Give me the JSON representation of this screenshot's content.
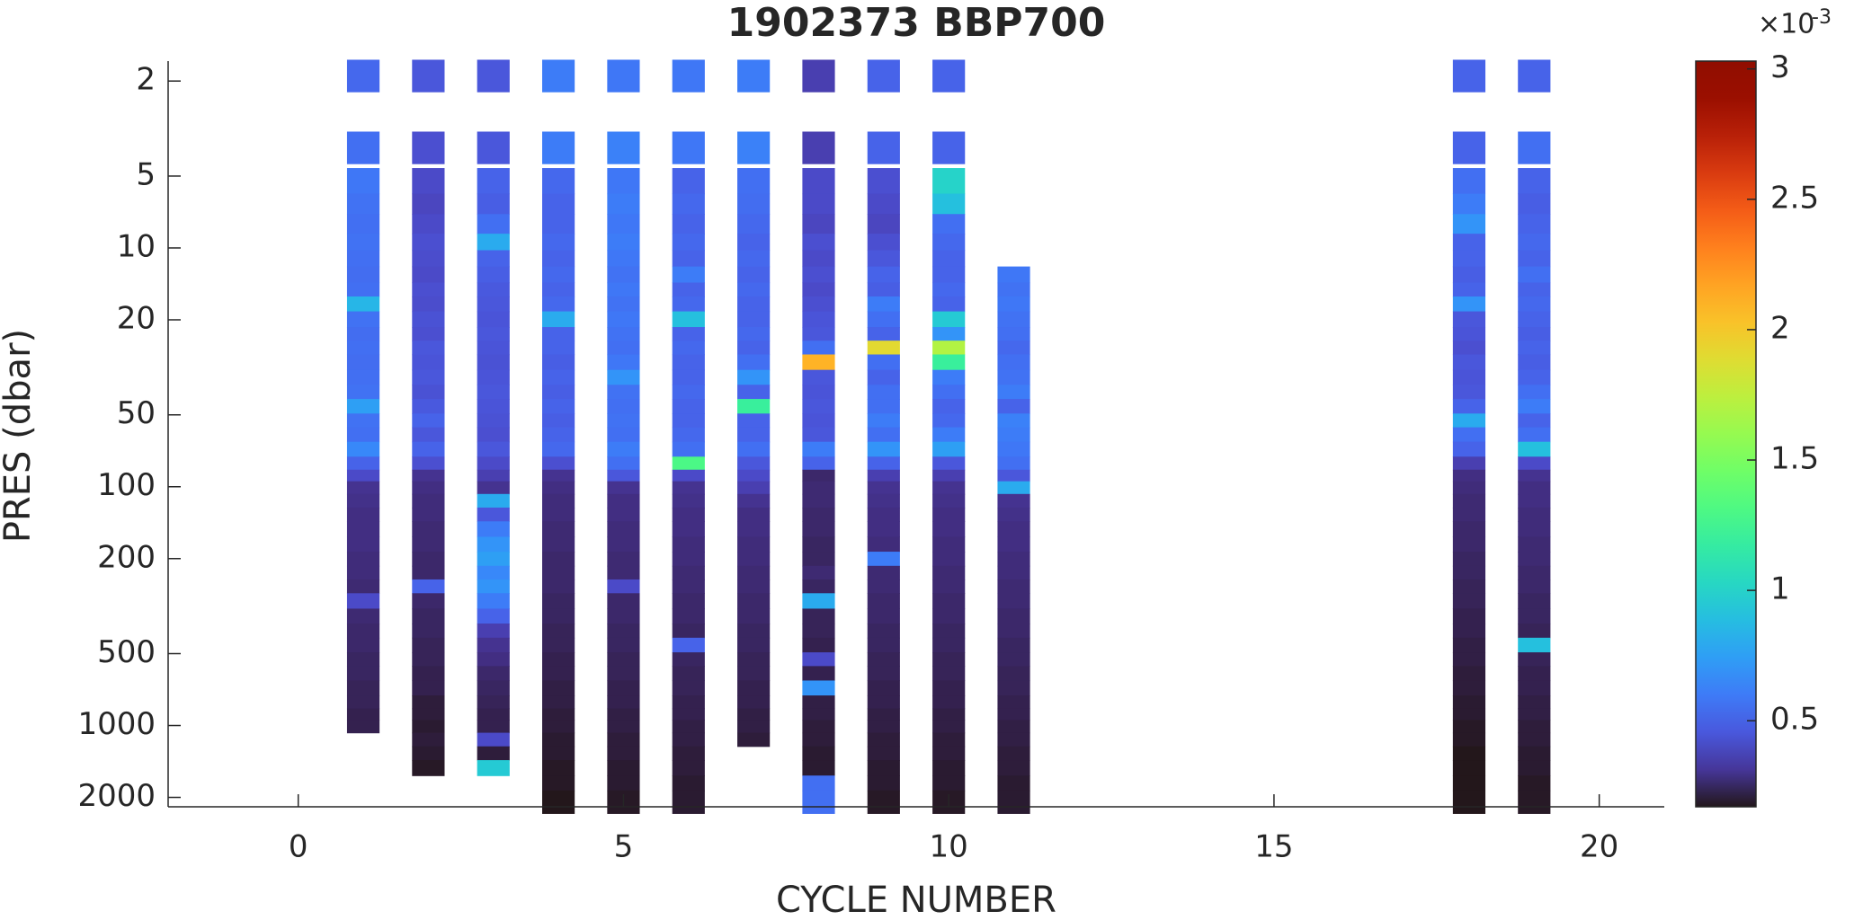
{
  "chart_data": {
    "type": "heatmap",
    "title": "1902373 BBP700",
    "xlabel": "CYCLE NUMBER",
    "ylabel": "PRES (dbar)",
    "x": [
      1,
      2,
      3,
      4,
      5,
      6,
      7,
      8,
      9,
      10,
      11,
      18,
      19
    ],
    "y": [
      1.9,
      3.8,
      5.4,
      6.5,
      8,
      9.5,
      11,
      13,
      15,
      17,
      20,
      23,
      26,
      30,
      35,
      40,
      46,
      53,
      60,
      70,
      80,
      90,
      100,
      115,
      130,
      150,
      175,
      200,
      230,
      260,
      300,
      350,
      400,
      460,
      530,
      600,
      700,
      800,
      900,
      1000,
      1150,
      1300,
      1500,
      1750,
      2000
    ],
    "values": [
      [
        0.52,
        0.55,
        0.58,
        0.56,
        0.55,
        0.56,
        0.55,
        0.54,
        0.55,
        0.85,
        0.56,
        0.54,
        0.55,
        0.54,
        0.55,
        0.56,
        0.75,
        0.56,
        0.55,
        0.65,
        0.5,
        0.4,
        0.3,
        0.29,
        0.28,
        0.28,
        0.28,
        0.27,
        0.27,
        0.26,
        0.4,
        0.26,
        0.25,
        0.25,
        0.24,
        0.24,
        0.23,
        0.23,
        0.22,
        0.22,
        null,
        null,
        null,
        null,
        null
      ],
      [
        0.45,
        0.42,
        0.4,
        0.38,
        0.4,
        0.42,
        0.41,
        0.4,
        0.42,
        0.41,
        0.43,
        0.42,
        0.45,
        0.44,
        0.45,
        0.43,
        0.46,
        0.5,
        0.45,
        0.5,
        0.42,
        0.3,
        0.28,
        0.27,
        0.27,
        0.26,
        0.26,
        0.25,
        0.25,
        0.5,
        0.25,
        0.24,
        0.24,
        0.23,
        0.23,
        0.22,
        0.22,
        0.2,
        0.2,
        0.19,
        0.2,
        0.19,
        0.18,
        null,
        null
      ],
      [
        0.45,
        0.45,
        0.5,
        0.48,
        0.55,
        0.8,
        0.5,
        0.48,
        0.46,
        0.45,
        0.44,
        0.45,
        0.44,
        0.43,
        0.44,
        0.45,
        0.44,
        0.43,
        0.42,
        0.45,
        0.4,
        0.35,
        0.3,
        0.8,
        0.45,
        0.6,
        0.7,
        0.75,
        0.65,
        0.7,
        0.6,
        0.5,
        0.35,
        0.3,
        0.28,
        0.25,
        0.24,
        0.23,
        0.22,
        0.22,
        0.4,
        0.2,
        0.95,
        null,
        null
      ],
      [
        0.6,
        0.6,
        0.52,
        0.5,
        0.5,
        0.52,
        0.5,
        0.52,
        0.5,
        0.52,
        0.8,
        0.5,
        0.5,
        0.48,
        0.5,
        0.48,
        0.5,
        0.48,
        0.5,
        0.52,
        0.42,
        0.3,
        0.28,
        0.27,
        0.27,
        0.26,
        0.26,
        0.25,
        0.25,
        0.25,
        0.24,
        0.24,
        0.23,
        0.23,
        0.22,
        0.22,
        0.21,
        0.21,
        0.2,
        0.2,
        0.19,
        0.19,
        0.18,
        0.18,
        0.17
      ],
      [
        0.58,
        0.62,
        0.58,
        0.6,
        0.58,
        0.6,
        0.58,
        0.56,
        0.58,
        0.56,
        0.58,
        0.56,
        0.55,
        0.58,
        0.7,
        0.56,
        0.55,
        0.56,
        0.55,
        0.6,
        0.55,
        0.45,
        0.3,
        0.28,
        0.28,
        0.27,
        0.27,
        0.26,
        0.26,
        0.4,
        0.25,
        0.25,
        0.24,
        0.24,
        0.23,
        0.23,
        0.22,
        0.22,
        0.21,
        0.21,
        0.2,
        0.2,
        0.19,
        0.19,
        0.18
      ],
      [
        0.58,
        0.58,
        0.5,
        0.52,
        0.5,
        0.52,
        0.5,
        0.6,
        0.5,
        0.52,
        0.9,
        0.5,
        0.52,
        0.5,
        0.5,
        0.52,
        0.5,
        0.5,
        0.52,
        0.55,
        1.3,
        0.4,
        0.3,
        0.29,
        0.28,
        0.28,
        0.27,
        0.27,
        0.26,
        0.26,
        0.25,
        0.25,
        0.24,
        0.5,
        0.24,
        0.23,
        0.23,
        0.22,
        0.22,
        0.21,
        0.21,
        0.2,
        0.2,
        0.19,
        0.19
      ],
      [
        0.6,
        0.62,
        0.55,
        0.54,
        0.52,
        0.5,
        0.52,
        0.5,
        0.52,
        0.5,
        0.5,
        0.52,
        0.5,
        0.55,
        0.7,
        0.5,
        1.2,
        0.5,
        0.5,
        0.55,
        0.45,
        0.4,
        0.35,
        0.3,
        0.28,
        0.28,
        0.27,
        0.27,
        0.26,
        0.26,
        0.25,
        0.25,
        0.24,
        0.24,
        0.23,
        0.23,
        0.22,
        0.22,
        0.21,
        0.21,
        0.2,
        null,
        null,
        null,
        null
      ],
      [
        0.35,
        0.35,
        0.4,
        0.4,
        0.38,
        0.42,
        0.4,
        0.42,
        0.4,
        0.42,
        0.44,
        0.45,
        0.55,
        2.1,
        0.45,
        0.44,
        0.45,
        0.44,
        0.45,
        0.6,
        0.5,
        0.25,
        0.26,
        0.26,
        0.25,
        0.25,
        0.24,
        0.24,
        0.26,
        0.24,
        0.8,
        0.23,
        0.23,
        0.22,
        0.4,
        0.22,
        0.7,
        0.21,
        0.21,
        0.2,
        0.2,
        0.19,
        0.19,
        0.55,
        0.55
      ],
      [
        0.5,
        0.5,
        0.42,
        0.4,
        0.38,
        0.42,
        0.45,
        0.5,
        0.48,
        0.6,
        0.55,
        0.5,
        1.9,
        0.55,
        0.5,
        0.55,
        0.55,
        0.6,
        0.55,
        0.7,
        0.5,
        0.35,
        0.3,
        0.29,
        0.28,
        0.28,
        0.27,
        0.6,
        0.26,
        0.26,
        0.25,
        0.25,
        0.24,
        0.24,
        0.23,
        0.23,
        0.22,
        0.22,
        0.21,
        0.21,
        0.2,
        0.2,
        0.19,
        0.19,
        0.18
      ],
      [
        0.5,
        0.5,
        1.0,
        0.9,
        0.55,
        0.52,
        0.5,
        0.5,
        0.52,
        0.5,
        0.95,
        0.7,
        1.7,
        1.2,
        0.6,
        0.55,
        0.5,
        0.52,
        0.6,
        0.75,
        0.45,
        0.35,
        0.3,
        0.29,
        0.28,
        0.28,
        0.27,
        0.27,
        0.26,
        0.26,
        0.25,
        0.25,
        0.24,
        0.24,
        0.23,
        0.23,
        0.22,
        0.22,
        0.21,
        0.21,
        0.2,
        0.2,
        0.19,
        0.19,
        0.18
      ],
      [
        null,
        null,
        null,
        null,
        null,
        null,
        null,
        0.58,
        0.56,
        0.58,
        0.56,
        0.55,
        0.52,
        0.55,
        0.56,
        0.6,
        0.5,
        0.62,
        0.6,
        0.58,
        0.55,
        0.45,
        0.8,
        0.3,
        0.29,
        0.28,
        0.28,
        0.27,
        0.27,
        0.26,
        0.26,
        0.25,
        0.25,
        0.24,
        0.24,
        0.23,
        0.23,
        0.22,
        0.22,
        0.21,
        0.21,
        0.2,
        0.2,
        0.19,
        0.19
      ],
      [
        0.5,
        0.5,
        0.55,
        0.6,
        0.7,
        0.5,
        0.5,
        0.48,
        0.5,
        0.7,
        0.45,
        0.44,
        0.42,
        0.45,
        0.44,
        0.45,
        0.5,
        0.8,
        0.55,
        0.5,
        0.35,
        0.28,
        0.27,
        0.26,
        0.26,
        0.25,
        0.25,
        0.24,
        0.24,
        0.23,
        0.23,
        0.22,
        0.22,
        0.21,
        0.21,
        0.2,
        0.2,
        0.19,
        0.19,
        0.18,
        0.18,
        0.17,
        0.17,
        0.17,
        0.16
      ],
      [
        0.5,
        0.55,
        0.5,
        0.48,
        0.5,
        0.52,
        0.5,
        0.55,
        0.5,
        0.52,
        0.5,
        0.48,
        0.5,
        0.48,
        0.5,
        0.55,
        0.6,
        0.5,
        0.55,
        0.9,
        0.4,
        0.3,
        0.28,
        0.28,
        0.27,
        0.27,
        0.26,
        0.26,
        0.25,
        0.25,
        0.24,
        0.24,
        0.23,
        0.9,
        0.23,
        0.22,
        0.22,
        0.21,
        0.21,
        0.2,
        0.2,
        0.19,
        0.19,
        0.18,
        0.18
      ]
    ],
    "xlim": [
      -2,
      21
    ],
    "xticks": [
      0,
      5,
      10,
      15,
      20
    ],
    "ylim": [
      1.65,
      2190
    ],
    "y_scale": "log",
    "y_reversed": true,
    "yticks": [
      2,
      5,
      10,
      20,
      50,
      100,
      200,
      500,
      1000,
      2000
    ],
    "colormap": "turbo",
    "clim": [
      0.17,
      3.03
    ],
    "cticks": [
      0.5,
      1,
      1.5,
      2,
      2.5,
      3
    ],
    "colorbar_multiplier": "×10",
    "colorbar_exponent": "-3"
  }
}
